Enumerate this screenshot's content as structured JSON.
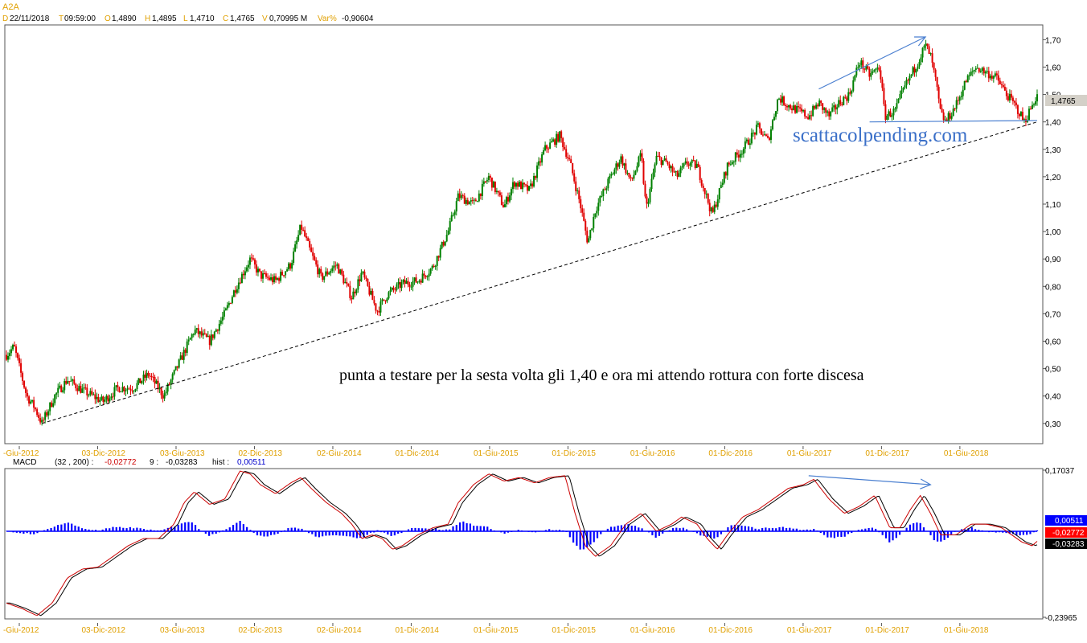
{
  "header": {
    "symbol": "A2A",
    "fields": [
      {
        "key": "D",
        "value": "22/11/2018"
      },
      {
        "key": "T",
        "value": "09:59:00"
      },
      {
        "key": "O",
        "value": "1,4890"
      },
      {
        "key": "H",
        "value": "1,4895"
      },
      {
        "key": "L",
        "value": "1,4710"
      },
      {
        "key": "C",
        "value": "1,4765"
      },
      {
        "key": "V",
        "value": "0,70995 M"
      },
      {
        "key": "Var%",
        "value": "-0,90604"
      }
    ]
  },
  "macd_header": {
    "name": "MACD",
    "params": "(32 , 200) :",
    "macd_value": "-0,02772",
    "signal_label": "9 :",
    "signal_value": "-0,03283",
    "hist_label": "hist :",
    "hist_value": "0,00511"
  },
  "annotations": {
    "watermark": "scattacolpending.com",
    "comment": "punta a testare per la sesta volta gli 1,40 e ora mi attendo rottura con forte discesa"
  },
  "colors": {
    "up_candle": "#008000",
    "down_candle": "#e00000",
    "header_key": "#e0a000",
    "arrow": "#4a7fd0",
    "macd_line": "#cc0000",
    "signal_line": "#000000",
    "histogram": "#0000ff",
    "price_tag_bg": "#d4d0c8"
  },
  "chart_data": [
    {
      "type": "candlestick",
      "title": "A2A",
      "x_labels": [
        "-Giu-2012",
        "03-Dic-2012",
        "03-Giu-2013",
        "02-Dic-2013",
        "02-Giu-2014",
        "01-Dic-2014",
        "01-Giu-2015",
        "01-Dic-2015",
        "01-Giu-2016",
        "01-Dic-2016",
        "01-Giu-2017",
        "01-Dic-2017",
        "01-Giu-2018"
      ],
      "y_ticks": [
        "0,30",
        "0,40",
        "0,50",
        "0,60",
        "0,70",
        "0,80",
        "0,90",
        "1,00",
        "1,10",
        "1,20",
        "1,30",
        "1,40",
        "1,50",
        "1,60",
        "1,70"
      ],
      "ylim": [
        0.235,
        1.745
      ],
      "last_price": "1,4765",
      "close_path": [
        {
          "t": 0.0,
          "v": 0.55
        },
        {
          "t": 1.5,
          "v": 0.58
        },
        {
          "t": 4.0,
          "v": 0.4
        },
        {
          "t": 5.5,
          "v": 0.36
        },
        {
          "t": 7.0,
          "v": 0.3
        },
        {
          "t": 9.5,
          "v": 0.4
        },
        {
          "t": 12.0,
          "v": 0.46
        },
        {
          "t": 15.0,
          "v": 0.42
        },
        {
          "t": 19.0,
          "v": 0.38
        },
        {
          "t": 22.0,
          "v": 0.43
        },
        {
          "t": 25.0,
          "v": 0.43
        },
        {
          "t": 28.0,
          "v": 0.48
        },
        {
          "t": 31.0,
          "v": 0.4
        },
        {
          "t": 34.0,
          "v": 0.52
        },
        {
          "t": 37.0,
          "v": 0.64
        },
        {
          "t": 40.0,
          "v": 0.6
        },
        {
          "t": 43.0,
          "v": 0.7
        },
        {
          "t": 45.0,
          "v": 0.79
        },
        {
          "t": 48.0,
          "v": 0.9
        },
        {
          "t": 50.0,
          "v": 0.84
        },
        {
          "t": 53.0,
          "v": 0.82
        },
        {
          "t": 56.0,
          "v": 0.88
        },
        {
          "t": 58.0,
          "v": 1.02
        },
        {
          "t": 60.0,
          "v": 0.92
        },
        {
          "t": 62.0,
          "v": 0.83
        },
        {
          "t": 65.0,
          "v": 0.88
        },
        {
          "t": 68.0,
          "v": 0.76
        },
        {
          "t": 70.0,
          "v": 0.85
        },
        {
          "t": 73.0,
          "v": 0.71
        },
        {
          "t": 75.0,
          "v": 0.77
        },
        {
          "t": 78.0,
          "v": 0.81
        },
        {
          "t": 81.0,
          "v": 0.82
        },
        {
          "t": 84.0,
          "v": 0.87
        },
        {
          "t": 87.0,
          "v": 1.0
        },
        {
          "t": 89.0,
          "v": 1.13
        },
        {
          "t": 92.0,
          "v": 1.1
        },
        {
          "t": 95.0,
          "v": 1.2
        },
        {
          "t": 98.0,
          "v": 1.09
        },
        {
          "t": 100.0,
          "v": 1.18
        },
        {
          "t": 103.0,
          "v": 1.15
        },
        {
          "t": 106.0,
          "v": 1.3
        },
        {
          "t": 109.0,
          "v": 1.35
        },
        {
          "t": 111.0,
          "v": 1.25
        },
        {
          "t": 113.0,
          "v": 1.1
        },
        {
          "t": 114.5,
          "v": 0.96
        },
        {
          "t": 116.0,
          "v": 1.08
        },
        {
          "t": 119.0,
          "v": 1.2
        },
        {
          "t": 121.0,
          "v": 1.27
        },
        {
          "t": 123.0,
          "v": 1.18
        },
        {
          "t": 125.0,
          "v": 1.28
        },
        {
          "t": 126.0,
          "v": 1.08
        },
        {
          "t": 128.0,
          "v": 1.27
        },
        {
          "t": 130.0,
          "v": 1.25
        },
        {
          "t": 132.0,
          "v": 1.2
        },
        {
          "t": 134.0,
          "v": 1.25
        },
        {
          "t": 136.0,
          "v": 1.24
        },
        {
          "t": 139.0,
          "v": 1.06
        },
        {
          "t": 142.0,
          "v": 1.24
        },
        {
          "t": 145.0,
          "v": 1.3
        },
        {
          "t": 148.0,
          "v": 1.38
        },
        {
          "t": 150.0,
          "v": 1.33
        },
        {
          "t": 152.0,
          "v": 1.49
        },
        {
          "t": 154.0,
          "v": 1.46
        },
        {
          "t": 156.0,
          "v": 1.44
        },
        {
          "t": 158.0,
          "v": 1.42
        },
        {
          "t": 160.0,
          "v": 1.47
        },
        {
          "t": 162.0,
          "v": 1.42
        },
        {
          "t": 164.0,
          "v": 1.47
        },
        {
          "t": 166.0,
          "v": 1.5
        },
        {
          "t": 168.0,
          "v": 1.62
        },
        {
          "t": 170.0,
          "v": 1.57
        },
        {
          "t": 172.0,
          "v": 1.6
        },
        {
          "t": 173.0,
          "v": 1.42
        },
        {
          "t": 175.0,
          "v": 1.44
        },
        {
          "t": 177.0,
          "v": 1.53
        },
        {
          "t": 179.0,
          "v": 1.6
        },
        {
          "t": 181.0,
          "v": 1.68
        },
        {
          "t": 182.0,
          "v": 1.64
        },
        {
          "t": 183.0,
          "v": 1.55
        },
        {
          "t": 184.0,
          "v": 1.43
        },
        {
          "t": 185.0,
          "v": 1.4
        },
        {
          "t": 187.0,
          "v": 1.46
        },
        {
          "t": 189.0,
          "v": 1.55
        },
        {
          "t": 191.0,
          "v": 1.6
        },
        {
          "t": 193.0,
          "v": 1.58
        },
        {
          "t": 195.0,
          "v": 1.56
        },
        {
          "t": 197.0,
          "v": 1.5
        },
        {
          "t": 199.0,
          "v": 1.45
        },
        {
          "t": 200.5,
          "v": 1.4
        },
        {
          "t": 202.0,
          "v": 1.46
        },
        {
          "t": 203.0,
          "v": 1.5
        }
      ],
      "support_line": {
        "from": {
          "t": 7.0,
          "v": 0.3
        },
        "to": {
          "t": 203.0,
          "v": 1.4
        }
      },
      "neckline": {
        "from": {
          "t": 170.0,
          "v": 1.4
        },
        "to": {
          "t": 203.0,
          "v": 1.405
        }
      },
      "trend_arrow": {
        "from": {
          "t": 160.0,
          "v": 1.52
        },
        "to": {
          "t": 181.0,
          "v": 1.71
        }
      }
    },
    {
      "type": "line",
      "title": "MACD",
      "y_ticks": [
        "0,17037",
        "-0,23965"
      ],
      "ylim": [
        -0.23965,
        0.17037
      ],
      "series": [
        {
          "name": "MACD",
          "last": "-0,02772",
          "path": [
            {
              "t": 0,
              "v": -0.2
            },
            {
              "t": 3,
              "v": -0.215
            },
            {
              "t": 6,
              "v": -0.235
            },
            {
              "t": 9,
              "v": -0.2
            },
            {
              "t": 12,
              "v": -0.13
            },
            {
              "t": 15,
              "v": -0.105
            },
            {
              "t": 18,
              "v": -0.1
            },
            {
              "t": 21,
              "v": -0.07
            },
            {
              "t": 24,
              "v": -0.04
            },
            {
              "t": 27,
              "v": -0.02
            },
            {
              "t": 30,
              "v": -0.02
            },
            {
              "t": 33,
              "v": 0.02
            },
            {
              "t": 35,
              "v": 0.08
            },
            {
              "t": 37,
              "v": 0.11
            },
            {
              "t": 40,
              "v": 0.075
            },
            {
              "t": 43,
              "v": 0.09
            },
            {
              "t": 46,
              "v": 0.168
            },
            {
              "t": 48,
              "v": 0.16
            },
            {
              "t": 50,
              "v": 0.13
            },
            {
              "t": 53,
              "v": 0.105
            },
            {
              "t": 56,
              "v": 0.135
            },
            {
              "t": 58,
              "v": 0.15
            },
            {
              "t": 60,
              "v": 0.12
            },
            {
              "t": 63,
              "v": 0.08
            },
            {
              "t": 66,
              "v": 0.05
            },
            {
              "t": 68,
              "v": 0.02
            },
            {
              "t": 70,
              "v": -0.02
            },
            {
              "t": 72,
              "v": -0.01
            },
            {
              "t": 74,
              "v": -0.02
            },
            {
              "t": 76,
              "v": -0.05
            },
            {
              "t": 78,
              "v": -0.04
            },
            {
              "t": 81,
              "v": -0.01
            },
            {
              "t": 84,
              "v": 0.01
            },
            {
              "t": 87,
              "v": 0.02
            },
            {
              "t": 89,
              "v": 0.08
            },
            {
              "t": 92,
              "v": 0.13
            },
            {
              "t": 95,
              "v": 0.16
            },
            {
              "t": 98,
              "v": 0.14
            },
            {
              "t": 101,
              "v": 0.15
            },
            {
              "t": 104,
              "v": 0.135
            },
            {
              "t": 107,
              "v": 0.15
            },
            {
              "t": 110,
              "v": 0.155
            },
            {
              "t": 112,
              "v": 0.05
            },
            {
              "t": 114,
              "v": -0.04
            },
            {
              "t": 116,
              "v": -0.07
            },
            {
              "t": 119,
              "v": -0.04
            },
            {
              "t": 122,
              "v": 0.02
            },
            {
              "t": 125,
              "v": 0.05
            },
            {
              "t": 128,
              "v": 0.0
            },
            {
              "t": 131,
              "v": 0.02
            },
            {
              "t": 133,
              "v": 0.04
            },
            {
              "t": 136,
              "v": 0.02
            },
            {
              "t": 138,
              "v": -0.02
            },
            {
              "t": 140,
              "v": -0.05
            },
            {
              "t": 142,
              "v": -0.01
            },
            {
              "t": 145,
              "v": 0.04
            },
            {
              "t": 148,
              "v": 0.06
            },
            {
              "t": 151,
              "v": 0.09
            },
            {
              "t": 154,
              "v": 0.12
            },
            {
              "t": 157,
              "v": 0.13
            },
            {
              "t": 159,
              "v": 0.145
            },
            {
              "t": 162,
              "v": 0.09
            },
            {
              "t": 165,
              "v": 0.05
            },
            {
              "t": 168,
              "v": 0.07
            },
            {
              "t": 171,
              "v": 0.1
            },
            {
              "t": 174,
              "v": 0.01
            },
            {
              "t": 176,
              "v": 0.01
            },
            {
              "t": 178,
              "v": 0.06
            },
            {
              "t": 180,
              "v": 0.1
            },
            {
              "t": 182,
              "v": 0.05
            },
            {
              "t": 184,
              "v": -0.01
            },
            {
              "t": 187,
              "v": -0.01
            },
            {
              "t": 190,
              "v": 0.02
            },
            {
              "t": 193,
              "v": 0.02
            },
            {
              "t": 196,
              "v": 0.01
            },
            {
              "t": 198,
              "v": -0.01
            },
            {
              "t": 200,
              "v": -0.03
            },
            {
              "t": 202,
              "v": -0.04
            },
            {
              "t": 203,
              "v": -0.028
            }
          ]
        },
        {
          "name": "9",
          "last": "-0,03283",
          "lag": 0.8
        },
        {
          "name": "hist",
          "last": "0,00511",
          "type": "histogram"
        }
      ],
      "trend_arrow": {
        "from": {
          "t": 158.0,
          "v": 0.155
        },
        "to": {
          "t": 182.0,
          "v": 0.13
        }
      }
    }
  ]
}
